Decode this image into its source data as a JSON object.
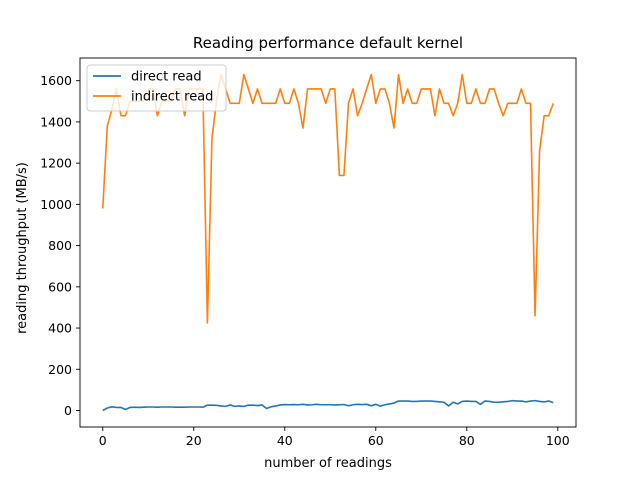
{
  "chart_data": {
    "type": "line",
    "title": "Reading performance default kernel",
    "xlabel": "number of readings",
    "ylabel": "reading throughput (MB/s)",
    "xlim": [
      -5,
      104
    ],
    "ylim": [
      -80,
      1710
    ],
    "xticks": [
      0,
      20,
      40,
      60,
      80,
      100
    ],
    "yticks": [
      0,
      200,
      400,
      600,
      800,
      1000,
      1200,
      1400,
      1600
    ],
    "grid": false,
    "legend_position": "top-left",
    "x": [
      0,
      1,
      2,
      3,
      4,
      5,
      6,
      7,
      8,
      9,
      10,
      11,
      12,
      13,
      14,
      15,
      16,
      17,
      18,
      19,
      20,
      21,
      22,
      23,
      24,
      25,
      26,
      27,
      28,
      29,
      30,
      31,
      32,
      33,
      34,
      35,
      36,
      37,
      38,
      39,
      40,
      41,
      42,
      43,
      44,
      45,
      46,
      47,
      48,
      49,
      50,
      51,
      52,
      53,
      54,
      55,
      56,
      57,
      58,
      59,
      60,
      61,
      62,
      63,
      64,
      65,
      66,
      67,
      68,
      69,
      70,
      71,
      72,
      73,
      74,
      75,
      76,
      77,
      78,
      79,
      80,
      81,
      82,
      83,
      84,
      85,
      86,
      87,
      88,
      89,
      90,
      91,
      92,
      93,
      94,
      95,
      96,
      97,
      98,
      99
    ],
    "series": [
      {
        "name": "direct read",
        "color": "#1f77b4",
        "values": [
          0,
          12,
          18,
          15,
          15,
          5,
          15,
          16,
          15,
          16,
          17,
          17,
          16,
          17,
          17,
          17,
          16,
          16,
          16,
          17,
          17,
          17,
          16,
          26,
          26,
          25,
          22,
          20,
          27,
          20,
          22,
          20,
          26,
          26,
          24,
          27,
          10,
          18,
          22,
          27,
          29,
          28,
          29,
          28,
          30,
          27,
          28,
          30,
          28,
          28,
          28,
          27,
          28,
          29,
          23,
          28,
          30,
          29,
          30,
          23,
          30,
          21,
          28,
          32,
          36,
          46,
          46,
          46,
          44,
          44,
          46,
          46,
          46,
          44,
          42,
          40,
          22,
          40,
          32,
          44,
          46,
          44,
          44,
          30,
          46,
          44,
          40,
          40,
          42,
          44,
          48,
          46,
          46,
          42,
          46,
          48,
          44,
          42,
          46,
          38
        ]
      },
      {
        "name": "indirect read",
        "color": "#ff7f0e",
        "values": [
          980,
          1380,
          1460,
          1560,
          1430,
          1430,
          1500,
          1500,
          1500,
          1500,
          1560,
          1560,
          1430,
          1500,
          1500,
          1500,
          1560,
          1560,
          1430,
          1560,
          1560,
          1560,
          1560,
          425,
          1320,
          1500,
          1630,
          1560,
          1490,
          1490,
          1490,
          1630,
          1560,
          1490,
          1560,
          1490,
          1490,
          1490,
          1490,
          1560,
          1490,
          1490,
          1560,
          1490,
          1370,
          1560,
          1560,
          1560,
          1560,
          1490,
          1560,
          1560,
          1140,
          1140,
          1490,
          1560,
          1430,
          1490,
          1560,
          1630,
          1490,
          1560,
          1560,
          1490,
          1370,
          1630,
          1490,
          1560,
          1490,
          1490,
          1560,
          1560,
          1560,
          1430,
          1560,
          1490,
          1490,
          1430,
          1490,
          1630,
          1490,
          1490,
          1560,
          1490,
          1490,
          1560,
          1560,
          1490,
          1430,
          1490,
          1490,
          1490,
          1560,
          1490,
          1490,
          460,
          1260,
          1430,
          1430,
          1490
        ]
      }
    ]
  }
}
